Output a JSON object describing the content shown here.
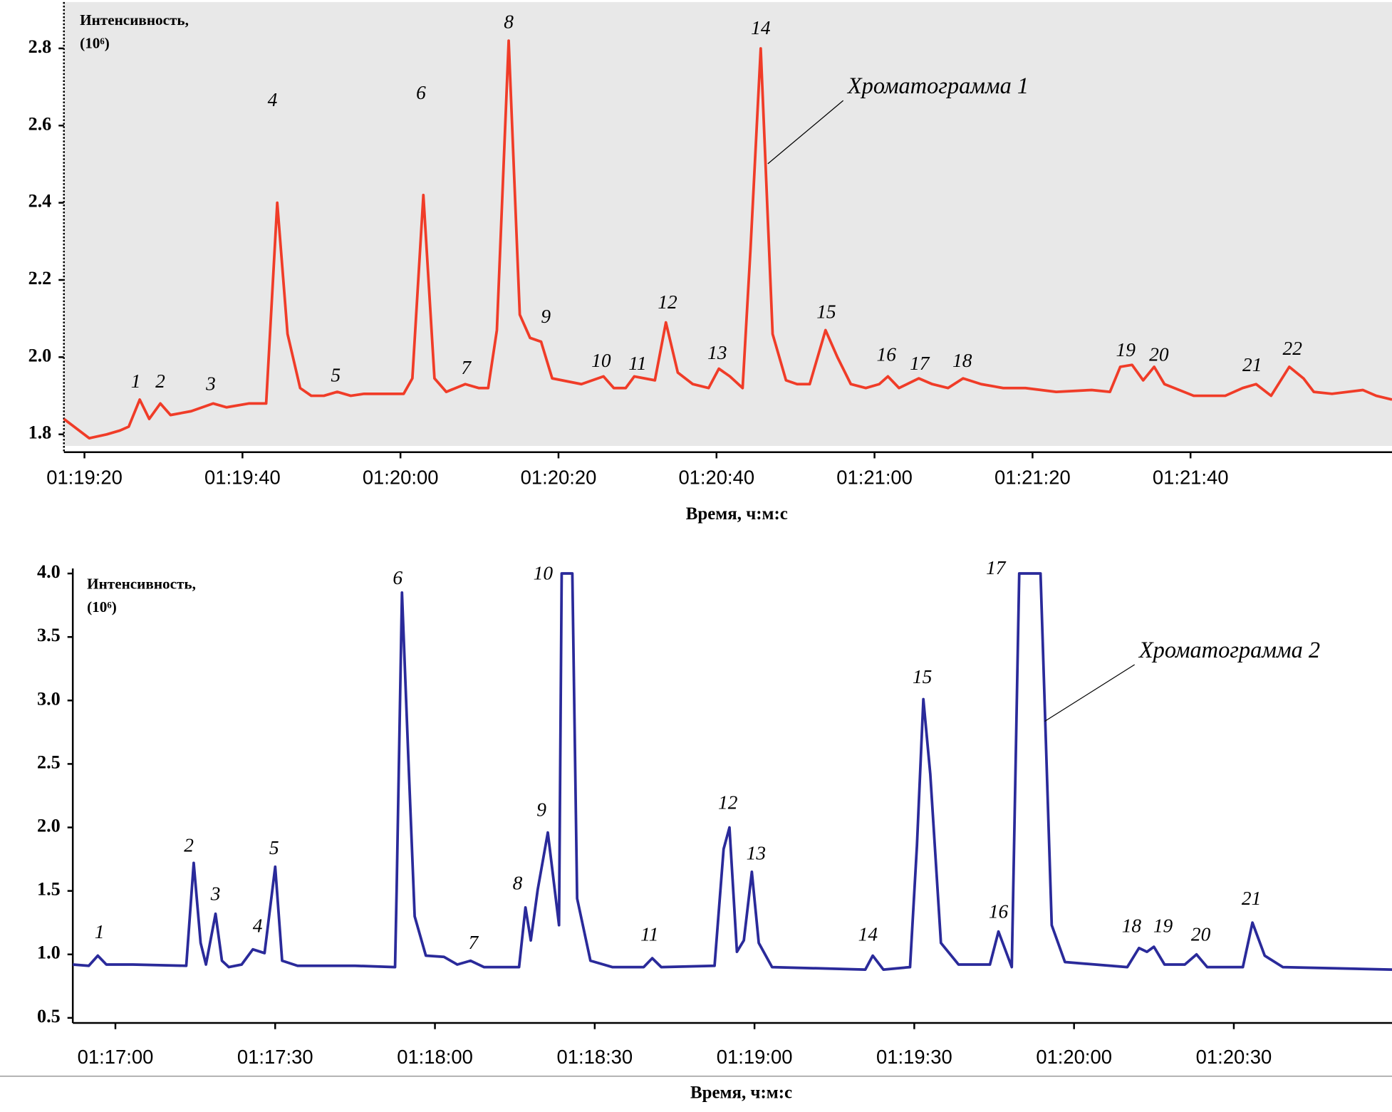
{
  "chart_data": [
    {
      "type": "line",
      "color": "#f03c28",
      "background": "#e8e8e8",
      "ylabel": [
        "Интенсивность,",
        "(10⁶)"
      ],
      "xlabel": "Время, ч:м:с",
      "xlim": [
        4757.4,
        4925.5
      ],
      "ylim": [
        1.77,
        2.92
      ],
      "xticks": [
        {
          "value": 4760,
          "label": "01:19:20"
        },
        {
          "value": 4780,
          "label": "01:19:40"
        },
        {
          "value": 4800,
          "label": "01:20:00"
        },
        {
          "value": 4820,
          "label": "01:20:20"
        },
        {
          "value": 4840,
          "label": "01:20:40"
        },
        {
          "value": 4860,
          "label": "01:21:00"
        },
        {
          "value": 4880,
          "label": "01:21:20"
        },
        {
          "value": 4900,
          "label": "01:21:40"
        }
      ],
      "yticks": [
        1.8,
        {
          "value": 2,
          "label": "2.0"
        },
        2.2,
        2.4,
        2.6,
        2.8
      ],
      "x": [
        4757.4,
        4760.6,
        4762.8,
        4764.5,
        4765.6,
        4767.0,
        4768.2,
        4769.6,
        4770.9,
        4773.5,
        4776.3,
        4778.0,
        4780.8,
        4783.0,
        4784.4,
        4785.7,
        4787.3,
        4788.7,
        4790.3,
        4792.0,
        4793.7,
        4795.4,
        4800.4,
        4801.5,
        4802.9,
        4804.3,
        4805.8,
        4808.2,
        4809.9,
        4811.1,
        4812.2,
        4813.7,
        4815.1,
        4816.4,
        4817.8,
        4819.2,
        4822.9,
        4825.7,
        4827.0,
        4828.5,
        4829.6,
        4832.2,
        4833.6,
        4835.1,
        4837.0,
        4839.0,
        4840.3,
        4841.7,
        4843.3,
        4844.3,
        4845.6,
        4847.1,
        4848.8,
        4850.2,
        4851.8,
        4853.8,
        4855.3,
        4857.0,
        4858.9,
        4860.6,
        4861.7,
        4863.1,
        4865.6,
        4867.3,
        4869.3,
        4871.2,
        4873.5,
        4876.3,
        4879.1,
        4883.0,
        4887.5,
        4889.8,
        4891.1,
        4892.6,
        4894.0,
        4895.4,
        4896.7,
        4900.4,
        4904.4,
        4906.6,
        4908.3,
        4910.2,
        4912.5,
        4914.3,
        4915.6,
        4917.9,
        4921.8,
        4923.5,
        4925.5
      ],
      "values": [
        1.84,
        1.79,
        1.8,
        1.81,
        1.82,
        1.89,
        1.84,
        1.88,
        1.85,
        1.86,
        1.88,
        1.87,
        1.88,
        1.88,
        2.4,
        2.06,
        1.92,
        1.9,
        1.9,
        1.91,
        1.9,
        1.905,
        1.905,
        1.945,
        2.42,
        1.945,
        1.91,
        1.93,
        1.92,
        1.92,
        2.07,
        2.82,
        2.11,
        2.05,
        2.04,
        1.945,
        1.93,
        1.95,
        1.92,
        1.92,
        1.95,
        1.94,
        2.09,
        1.96,
        1.93,
        1.92,
        1.97,
        1.95,
        1.92,
        2.28,
        2.8,
        2.06,
        1.94,
        1.93,
        1.93,
        2.07,
        2.0,
        1.93,
        1.92,
        1.93,
        1.95,
        1.92,
        1.945,
        1.93,
        1.92,
        1.945,
        1.93,
        1.92,
        1.92,
        1.91,
        1.915,
        1.91,
        1.975,
        1.98,
        1.94,
        1.975,
        1.93,
        1.9,
        1.9,
        1.92,
        1.93,
        1.9,
        1.975,
        1.945,
        1.91,
        1.905,
        1.915,
        1.9,
        1.89
      ],
      "annotations": [
        {
          "text": "1",
          "x": 4766.5,
          "y": 1.933
        },
        {
          "text": "2",
          "x": 4769.6,
          "y": 1.933
        },
        {
          "text": "3",
          "x": 4776.0,
          "y": 1.926
        },
        {
          "text": "4",
          "x": 4783.8,
          "y": 2.662
        },
        {
          "text": "5",
          "x": 4791.8,
          "y": 1.949
        },
        {
          "text": "6",
          "x": 4802.6,
          "y": 2.68
        },
        {
          "text": "7",
          "x": 4808.3,
          "y": 1.968
        },
        {
          "text": "8",
          "x": 4813.7,
          "y": 2.864
        },
        {
          "text": "9",
          "x": 4818.4,
          "y": 2.101
        },
        {
          "text": "10",
          "x": 4825.4,
          "y": 1.986
        },
        {
          "text": "11",
          "x": 4830.0,
          "y": 1.979
        },
        {
          "text": "12",
          "x": 4833.8,
          "y": 2.138
        },
        {
          "text": "13",
          "x": 4840.1,
          "y": 2.007
        },
        {
          "text": "14",
          "x": 4845.6,
          "y": 2.848
        },
        {
          "text": "15",
          "x": 4853.9,
          "y": 2.113
        },
        {
          "text": "16",
          "x": 4861.5,
          "y": 2.002
        },
        {
          "text": "17",
          "x": 4865.7,
          "y": 1.979
        },
        {
          "text": "18",
          "x": 4871.1,
          "y": 1.986
        },
        {
          "text": "19",
          "x": 4891.8,
          "y": 2.014
        },
        {
          "text": "20",
          "x": 4896.0,
          "y": 2.002
        },
        {
          "text": "21",
          "x": 4907.8,
          "y": 1.975
        },
        {
          "text": "22",
          "x": 4912.9,
          "y": 2.018
        }
      ],
      "callout": {
        "text": "Хроматограмма 1",
        "x": 4856.6,
        "y": 2.697,
        "target": [
          4846.5,
          2.501
        ]
      }
    },
    {
      "type": "line",
      "color": "#2a2a9a",
      "background": "#ffffff",
      "ylabel": [
        "Интенсивность,",
        "(10⁶)"
      ],
      "xlabel": "Время, ч:м:с",
      "xlim": [
        4612,
        4859.7
      ],
      "ylim": [
        0.46,
        4.04
      ],
      "xticks": [
        {
          "value": 4620,
          "label": "01:17:00"
        },
        {
          "value": 4650,
          "label": "01:17:30"
        },
        {
          "value": 4680,
          "label": "01:18:00"
        },
        {
          "value": 4710,
          "label": "01:18:30"
        },
        {
          "value": 4740,
          "label": "01:19:00"
        },
        {
          "value": 4770,
          "label": "01:19:30"
        },
        {
          "value": 4800,
          "label": "01:20:00"
        },
        {
          "value": 4830,
          "label": "01:20:30"
        }
      ],
      "yticks": [
        0.5,
        {
          "value": 1,
          "label": "1.0"
        },
        1.5,
        {
          "value": 2,
          "label": "2.0"
        },
        2.5,
        {
          "value": 3,
          "label": "3.0"
        },
        3.5,
        {
          "value": 4,
          "label": "4.0"
        }
      ],
      "x": [
        4612.0,
        4615.0,
        4616.7,
        4618.3,
        4623.3,
        4633.3,
        4634.7,
        4636.0,
        4637.0,
        4638.8,
        4640.0,
        4641.3,
        4643.7,
        4645.8,
        4648.0,
        4650.0,
        4651.3,
        4654.2,
        4665.0,
        4672.5,
        4672.8,
        4673.8,
        4675.0,
        4676.2,
        4678.3,
        4681.7,
        4684.2,
        4686.7,
        4689.2,
        4695.8,
        4697.0,
        4698.0,
        4699.3,
        4701.2,
        4703.3,
        4703.8,
        4705.8,
        4706.7,
        4709.2,
        4713.3,
        4719.2,
        4720.8,
        4722.5,
        4732.5,
        4734.2,
        4735.3,
        4736.7,
        4738.0,
        4739.5,
        4740.8,
        4743.3,
        4760.8,
        4762.2,
        4764.2,
        4769.2,
        4770.5,
        4771.7,
        4773.0,
        4775.0,
        4778.3,
        4784.2,
        4785.8,
        4788.3,
        4789.7,
        4793.7,
        4795.8,
        4798.3,
        4810.0,
        4812.2,
        4813.7,
        4815.0,
        4817.0,
        4820.8,
        4823.0,
        4825.0,
        4831.7,
        4833.5,
        4835.8,
        4839.2,
        4859.7
      ],
      "values": [
        0.92,
        0.91,
        0.99,
        0.92,
        0.92,
        0.91,
        1.72,
        1.09,
        0.92,
        1.32,
        0.95,
        0.9,
        0.92,
        1.04,
        1.01,
        1.69,
        0.95,
        0.91,
        0.91,
        0.9,
        1.51,
        3.85,
        2.56,
        1.3,
        0.99,
        0.98,
        0.92,
        0.95,
        0.9,
        0.9,
        1.37,
        1.11,
        1.51,
        1.96,
        1.23,
        4.0,
        4.0,
        1.44,
        0.95,
        0.9,
        0.9,
        0.97,
        0.9,
        0.91,
        1.83,
        2.0,
        1.02,
        1.11,
        1.65,
        1.09,
        0.9,
        0.88,
        0.99,
        0.88,
        0.9,
        1.86,
        3.01,
        2.42,
        1.09,
        0.92,
        0.92,
        1.18,
        0.9,
        4.0,
        4.0,
        1.23,
        0.94,
        0.9,
        1.05,
        1.02,
        1.06,
        0.92,
        0.92,
        1.0,
        0.9,
        0.9,
        1.25,
        0.99,
        0.9,
        0.88
      ],
      "annotations": [
        {
          "text": "1",
          "x": 4617.0,
          "y": 1.162
        },
        {
          "text": "2",
          "x": 4633.8,
          "y": 1.846
        },
        {
          "text": "3",
          "x": 4638.8,
          "y": 1.462
        },
        {
          "text": "4",
          "x": 4646.7,
          "y": 1.211
        },
        {
          "text": "5",
          "x": 4649.8,
          "y": 1.825
        },
        {
          "text": "6",
          "x": 4673.0,
          "y": 3.952
        },
        {
          "text": "7",
          "x": 4687.2,
          "y": 1.079
        },
        {
          "text": "8",
          "x": 4695.5,
          "y": 1.546
        },
        {
          "text": "9",
          "x": 4700.0,
          "y": 2.125
        },
        {
          "text": "10",
          "x": 4700.3,
          "y": 3.987
        },
        {
          "text": "11",
          "x": 4720.3,
          "y": 1.142
        },
        {
          "text": "12",
          "x": 4735.0,
          "y": 2.181
        },
        {
          "text": "13",
          "x": 4740.3,
          "y": 1.783
        },
        {
          "text": "14",
          "x": 4761.3,
          "y": 1.142
        },
        {
          "text": "15",
          "x": 4771.5,
          "y": 3.171
        },
        {
          "text": "16",
          "x": 4785.8,
          "y": 1.323
        },
        {
          "text": "17",
          "x": 4785.3,
          "y": 4.03
        },
        {
          "text": "18",
          "x": 4810.8,
          "y": 1.211
        },
        {
          "text": "19",
          "x": 4816.7,
          "y": 1.211
        },
        {
          "text": "20",
          "x": 4823.8,
          "y": 1.142
        },
        {
          "text": "21",
          "x": 4833.3,
          "y": 1.427
        }
      ],
      "callout": {
        "text": "Хроматограмма 2",
        "x": 4812.2,
        "y": 3.38,
        "target": [
          4794.5,
          2.836
        ]
      }
    }
  ]
}
